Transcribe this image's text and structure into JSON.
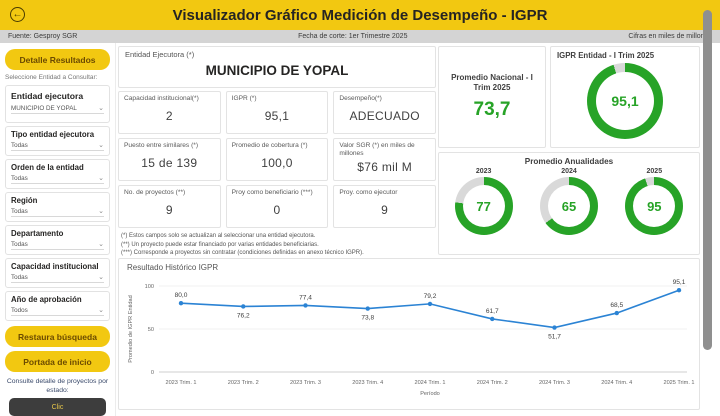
{
  "header": {
    "title": "Visualizador Gráfico Medición de Desempeño - IGPR",
    "back_icon": "←",
    "source": "Fuente: Gesproy SGR",
    "cutoff": "Fecha de corte: 1er Trimestre 2025",
    "units": "Cifras en miles de millones"
  },
  "sidebar": {
    "detail_button": "Detalle Resultados",
    "select_hint": "Seleccione Entidad a Consultar:",
    "filters": [
      {
        "label": "Entidad ejecutora",
        "value": "MUNICIPIO DE YOPAL"
      },
      {
        "label": "Tipo entidad ejecutora",
        "value": "Todas"
      },
      {
        "label": "Orden de la entidad",
        "value": "Todas"
      },
      {
        "label": "Región",
        "value": "Todas"
      },
      {
        "label": "Departamento",
        "value": "Todas"
      },
      {
        "label": "Capacidad institucional",
        "value": "Todas"
      },
      {
        "label": "Año de aprobación",
        "value": "Todos"
      }
    ],
    "restore_button": "Restaura búsqueda",
    "home_button": "Portada de inicio",
    "projects_hint": "Consulte detalle de proyectos por estado:",
    "clic_button": "Clic"
  },
  "entity": {
    "label": "Entidad Ejecutora (*)",
    "name": "MUNICIPIO DE YOPAL"
  },
  "kpis": [
    {
      "label": "Capacidad institucional(*)",
      "value": "2"
    },
    {
      "label": "IGPR (*)",
      "value": "95,1"
    },
    {
      "label": "Desempeño(*)",
      "value": "ADECUADO"
    },
    {
      "label": "Puesto entre similares (*)",
      "value": "15 de 139"
    },
    {
      "label": "Promedio de cobertura (*)",
      "value": "100,0"
    },
    {
      "label": "Valor SGR (*) en miles de millones",
      "value": "$76 mil M"
    },
    {
      "label": "No. de proyectos (**)",
      "value": "9"
    },
    {
      "label": "Proy como beneficiario (***)",
      "value": "0"
    },
    {
      "label": "Proy. como ejecutor",
      "value": "9"
    }
  ],
  "footnotes": [
    "(*) Estos campos solo se actualizan al seleccionar una entidad ejecutora.",
    "(**) Un proyecto puede estar financiado por varias entidades beneficiarias.",
    "(***) Corresponde a proyectos sin contratar (condiciones definidas en anexo técnico IGPR)."
  ],
  "national": {
    "label": "Promedio Nacional - I Trim 2025",
    "value": "73,7"
  },
  "entity_gauge": {
    "label": "IGPR Entidad - I Trim 2025",
    "value": "95,1",
    "pct": 95.1
  },
  "annualities": {
    "title": "Promedio Anualidades",
    "items": [
      {
        "year": "2023",
        "value": "77",
        "pct": 77
      },
      {
        "year": "2024",
        "value": "65",
        "pct": 65
      },
      {
        "year": "2025",
        "value": "95",
        "pct": 95
      }
    ]
  },
  "chart_data": {
    "type": "line",
    "title": "Resultado Histórico IGPR",
    "x": [
      "2023 Trim. 1",
      "2023 Trim. 2",
      "2023 Trim. 3",
      "2023 Trim. 4",
      "2024 Trim. 1",
      "2024 Trim. 2",
      "2024 Trim. 3",
      "2024 Trim. 4",
      "2025 Trim. 1"
    ],
    "values": [
      80.0,
      76.2,
      77.4,
      73.8,
      79.2,
      61.7,
      51.7,
      68.5,
      95.1
    ],
    "labels": [
      "80,0",
      "76,2",
      "77,4",
      "73,8",
      "79,2",
      "61,7",
      "51,7",
      "68,5",
      "95,1"
    ],
    "label_above": [
      true,
      false,
      true,
      false,
      true,
      true,
      false,
      true,
      true
    ],
    "xlabel": "Período",
    "ylabel": "Promedio de IGPR Entidad",
    "ylim": [
      0,
      100
    ],
    "yticks": [
      0,
      50,
      100
    ],
    "grid": "minimal",
    "legend": "none",
    "line_color": "#2b83d4"
  },
  "colors": {
    "accent_yellow": "#F2C811",
    "green": "#27a327",
    "track": "#d9d9d9",
    "line_blue": "#2b83d4"
  }
}
